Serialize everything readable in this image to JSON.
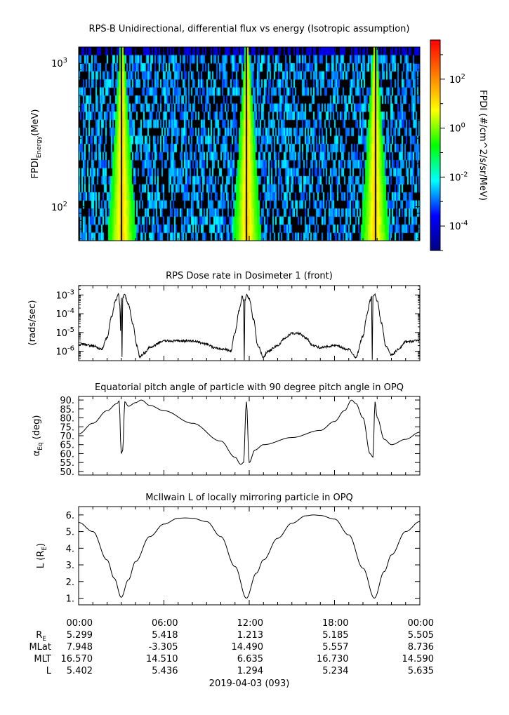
{
  "chart_data": [
    {
      "type": "heatmap",
      "title": "RPS-B  Unidirectional, differential flux vs energy (Isotropic assumption)",
      "ylabel_main": "FPDI",
      "ylabel_sub": "Energy",
      "ylabel_unit": "(MeV)",
      "yscale": "log",
      "ylim": [
        58,
        1300
      ],
      "yticks": [
        {
          "value": 100,
          "base": "10",
          "exp": "2"
        },
        {
          "value": 1000,
          "base": "10",
          "exp": "3"
        }
      ],
      "xlim_hours": [
        0,
        24
      ],
      "perigee_hours": [
        3.0,
        11.8,
        20.8
      ],
      "colorbar": {
        "label": "FPDI (#/cm^2/s/sr/MeV)",
        "scale": "log",
        "range_log10": [
          -5,
          3.6
        ],
        "ticks": [
          {
            "exp": "2",
            "v": 2
          },
          {
            "exp": "0",
            "v": 0
          },
          {
            "exp": "-2",
            "v": -2
          },
          {
            "exp": "-4",
            "v": -4
          }
        ],
        "colors": [
          "#000080",
          "#0000ff",
          "#00ffff",
          "#00ff00",
          "#ffff00",
          "#ff8000",
          "#ff0000"
        ]
      }
    },
    {
      "type": "line",
      "title": "RPS  Dose rate in Dosimeter 1 (front)",
      "ylabel": "(rads/sec)",
      "yscale": "log",
      "ylim_log10": [
        -6.5,
        -2.5
      ],
      "yticks": [
        {
          "exp": "-3",
          "v": -3
        },
        {
          "exp": "-4",
          "v": -4
        },
        {
          "exp": "-5",
          "v": -5
        },
        {
          "exp": "-6",
          "v": -6
        }
      ],
      "x_hours": [
        0,
        1,
        1.6,
        2,
        2.3,
        2.6,
        2.8,
        2.9,
        2.95,
        3.0,
        3.05,
        3.1,
        3.2,
        3.5,
        3.8,
        4.1,
        4.3,
        4.6,
        5,
        6,
        8,
        9,
        9.5,
        10.3,
        10.7,
        11,
        11.3,
        11.5,
        11.6,
        11.65,
        11.7,
        11.8,
        12,
        12.3,
        12.6,
        13,
        13.3,
        14,
        14.5,
        15,
        15.5,
        16,
        16.5,
        17,
        18,
        19,
        19.5,
        20,
        20.3,
        20.5,
        20.6,
        20.65,
        20.7,
        20.8,
        21,
        21.3,
        21.6,
        22,
        22.5,
        23,
        24
      ],
      "log10_values": [
        -5.6,
        -5.7,
        -5.9,
        -5.3,
        -4.2,
        -3.3,
        -2.95,
        -3.5,
        -4.9,
        -3.2,
        -6.3,
        -3.2,
        -2.95,
        -3.5,
        -4.5,
        -5.7,
        -6.3,
        -6.1,
        -5.8,
        -5.45,
        -5.45,
        -5.6,
        -5.8,
        -5.9,
        -6.0,
        -5.0,
        -3.8,
        -3.1,
        -3.3,
        -6.5,
        -3.3,
        -3.0,
        -3.2,
        -4.3,
        -5.7,
        -6.3,
        -6.0,
        -5.7,
        -5.3,
        -5.05,
        -5.05,
        -5.3,
        -5.7,
        -5.8,
        -5.7,
        -5.9,
        -6.3,
        -5.2,
        -4.0,
        -3.3,
        -3.1,
        -6.5,
        -3.1,
        -2.95,
        -3.3,
        -4.5,
        -5.7,
        -6.2,
        -5.9,
        -5.5,
        -5.4
      ]
    },
    {
      "type": "line",
      "title": "Equatorial pitch angle of particle with 90 degree pitch angle in OPQ",
      "ylabel_main": "α",
      "ylabel_sub": "Eq",
      "ylabel_unit": " (deg)",
      "ylim": [
        48,
        92
      ],
      "yticks": [
        "50.",
        "55.",
        "60.",
        "65.",
        "70.",
        "75.",
        "80.",
        "85.",
        "90."
      ],
      "x_hours": [
        0,
        1,
        2,
        2.7,
        2.85,
        3.0,
        3.1,
        3.25,
        3.5,
        4,
        4.4,
        5,
        6,
        8,
        10,
        11,
        11.4,
        11.6,
        11.8,
        12,
        12.4,
        13,
        15,
        17,
        18,
        18.7,
        19.2,
        19.5,
        20,
        20.5,
        20.7,
        20.85,
        21,
        21.5,
        22,
        23,
        24
      ],
      "values": [
        71,
        77,
        84,
        88,
        89.5,
        60,
        62,
        89,
        86.5,
        88.5,
        90,
        87,
        84,
        77,
        67,
        58,
        54,
        55,
        89,
        55,
        62,
        65,
        69,
        73,
        78,
        84,
        90,
        88,
        80,
        60,
        58,
        89,
        80,
        68,
        65,
        68,
        72
      ]
    },
    {
      "type": "line",
      "title": "McIlwain L of locally mirroring particle in OPQ",
      "ylabel_main": "L (R",
      "ylabel_sub": "E",
      "ylabel_end": ")",
      "ylim": [
        0.6,
        6.5
      ],
      "yticks": [
        "1.",
        "2.",
        "3.",
        "4.",
        "5.",
        "6."
      ],
      "x_hours": [
        0,
        1,
        2,
        2.5,
        3,
        3.5,
        4,
        5,
        6,
        7,
        7.5,
        8,
        9,
        10,
        11,
        11.8,
        12.5,
        13,
        14,
        15,
        16,
        16.5,
        17,
        18,
        19,
        20,
        20.8,
        21.5,
        22,
        23,
        24
      ],
      "values": [
        5.55,
        5.0,
        3.3,
        2.2,
        1.05,
        2.1,
        3.2,
        4.7,
        5.45,
        5.8,
        5.82,
        5.8,
        5.6,
        4.7,
        2.9,
        1.0,
        2.5,
        3.3,
        4.6,
        5.5,
        5.95,
        6.0,
        5.97,
        5.75,
        4.8,
        2.8,
        1.0,
        2.6,
        3.6,
        5.0,
        5.6
      ]
    }
  ],
  "xaxis": {
    "times": [
      "00:00",
      "06:00",
      "12:00",
      "18:00",
      "00:00"
    ],
    "rows": [
      {
        "label": "R",
        "sub": "E",
        "values": [
          "5.299",
          "5.418",
          "1.213",
          "5.185",
          "5.505"
        ]
      },
      {
        "label": "MLat",
        "sub": "",
        "values": [
          "7.948",
          "-3.305",
          "14.490",
          "5.557",
          "8.736"
        ]
      },
      {
        "label": "MLT",
        "sub": "",
        "values": [
          "16.570",
          "14.510",
          "6.635",
          "16.730",
          "14.590"
        ]
      },
      {
        "label": "L",
        "sub": "",
        "values": [
          "5.402",
          "5.436",
          "1.294",
          "5.234",
          "5.635"
        ]
      }
    ],
    "date": "2019-04-03 (093)"
  }
}
